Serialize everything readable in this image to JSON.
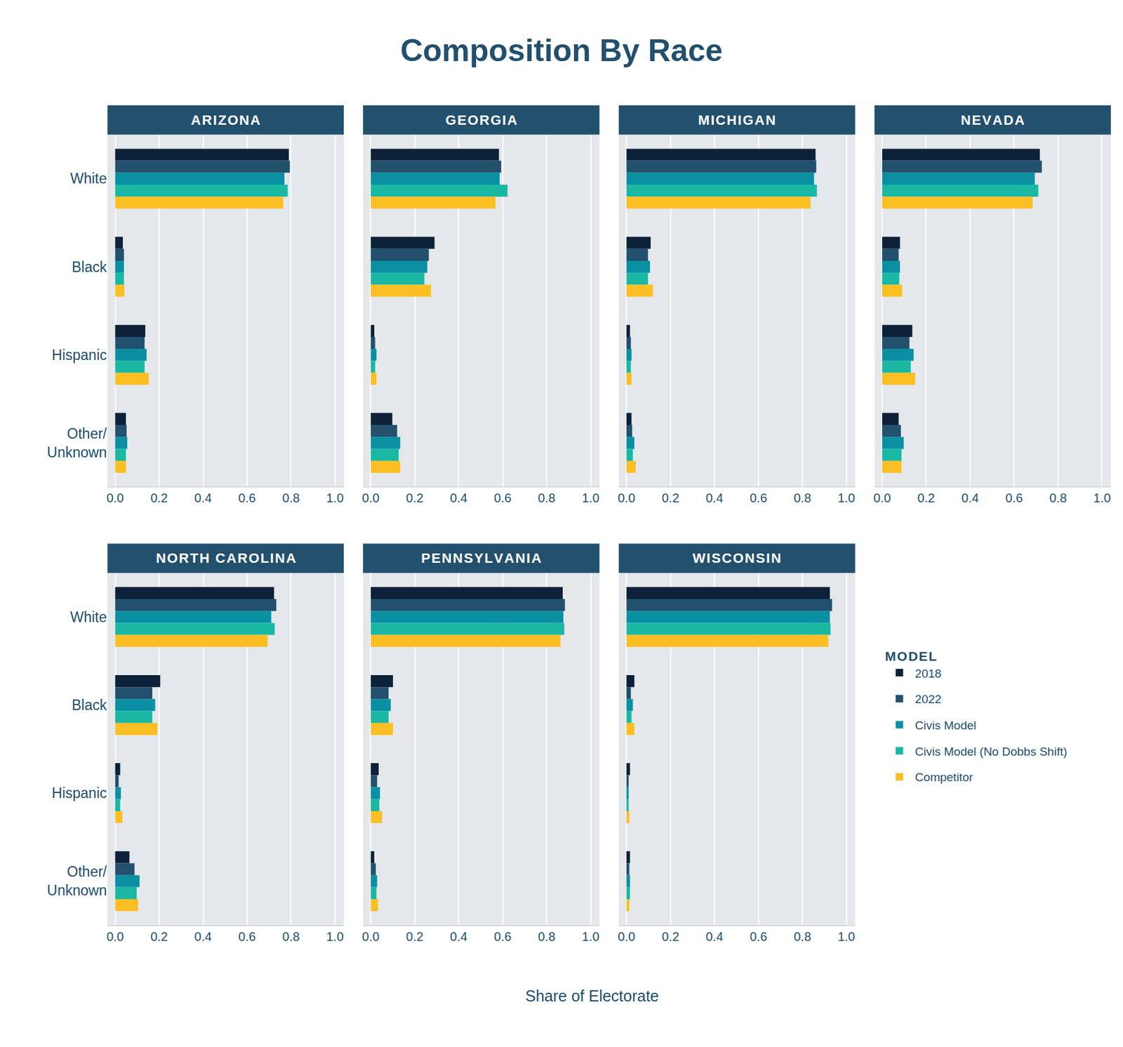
{
  "title": "Composition By Race",
  "xlabel": "Share of Electorate",
  "legend_title": "MODEL",
  "legend": "lower right",
  "chart_data": [
    {
      "type": "bar",
      "title": "ARIZONA",
      "orientation": "horizontal",
      "grid": true,
      "categories": [
        "White",
        "Black",
        "Hispanic",
        "Other/\nUnknown"
      ],
      "xlim": [
        -0.035,
        1.04
      ],
      "xticks": [
        {
          "value": 0,
          "label": "0.0"
        },
        0.2,
        0.4,
        0.6,
        0.8,
        {
          "value": 1,
          "label": "1.0"
        }
      ],
      "series": [
        {
          "name": "2018",
          "color": "#0d2238",
          "values": [
            0.79,
            0.035,
            0.137,
            0.049
          ]
        },
        {
          "name": "2022",
          "color": "#22506d",
          "values": [
            0.795,
            0.04,
            0.134,
            0.052
          ]
        },
        {
          "name": "Civis Model",
          "color": "#0a8fa3",
          "values": [
            0.77,
            0.04,
            0.143,
            0.055
          ]
        },
        {
          "name": "Civis Model (No Dobbs Shift)",
          "color": "#1ab8a3",
          "values": [
            0.785,
            0.04,
            0.134,
            0.049
          ]
        },
        {
          "name": "Competitor",
          "color": "#fbbf24",
          "values": [
            0.765,
            0.042,
            0.153,
            0.049
          ]
        }
      ]
    },
    {
      "type": "bar",
      "title": "GEORGIA",
      "orientation": "horizontal",
      "grid": true,
      "categories": [
        "White",
        "Black",
        "Hispanic",
        "Other/\nUnknown"
      ],
      "xlim": [
        -0.035,
        1.04
      ],
      "xticks": [
        {
          "value": 0,
          "label": "0.0"
        },
        0.2,
        0.4,
        0.6,
        0.8,
        {
          "value": 1,
          "label": "1.0"
        }
      ],
      "series": [
        {
          "name": "2018",
          "color": "#0d2238",
          "values": [
            0.583,
            0.29,
            0.016,
            0.098
          ]
        },
        {
          "name": "2022",
          "color": "#22506d",
          "values": [
            0.593,
            0.264,
            0.02,
            0.12
          ]
        },
        {
          "name": "Civis Model",
          "color": "#0a8fa3",
          "values": [
            0.586,
            0.257,
            0.026,
            0.134
          ]
        },
        {
          "name": "Civis Model (No Dobbs Shift)",
          "color": "#1ab8a3",
          "values": [
            0.622,
            0.244,
            0.02,
            0.127
          ]
        },
        {
          "name": "Competitor",
          "color": "#fbbf24",
          "values": [
            0.567,
            0.274,
            0.026,
            0.134
          ]
        }
      ]
    },
    {
      "type": "bar",
      "title": "MICHIGAN",
      "orientation": "horizontal",
      "grid": true,
      "categories": [
        "White",
        "Black",
        "Hispanic",
        "Other/\nUnknown"
      ],
      "xlim": [
        -0.035,
        1.04
      ],
      "xticks": [
        {
          "value": 0,
          "label": "0.0"
        },
        0.2,
        0.4,
        0.6,
        0.8,
        {
          "value": 1,
          "label": "1.0"
        }
      ],
      "series": [
        {
          "name": "2018",
          "color": "#0d2238",
          "values": [
            0.86,
            0.11,
            0.016,
            0.023
          ]
        },
        {
          "name": "2022",
          "color": "#22506d",
          "values": [
            0.863,
            0.098,
            0.02,
            0.026
          ]
        },
        {
          "name": "Civis Model",
          "color": "#0a8fa3",
          "values": [
            0.853,
            0.107,
            0.023,
            0.036
          ]
        },
        {
          "name": "Civis Model (No Dobbs Shift)",
          "color": "#1ab8a3",
          "values": [
            0.866,
            0.098,
            0.02,
            0.029
          ]
        },
        {
          "name": "Competitor",
          "color": "#fbbf24",
          "values": [
            0.837,
            0.12,
            0.023,
            0.042
          ]
        }
      ]
    },
    {
      "type": "bar",
      "title": "NEVADA",
      "orientation": "horizontal",
      "grid": true,
      "categories": [
        "White",
        "Black",
        "Hispanic",
        "Other/\nUnknown"
      ],
      "xlim": [
        -0.035,
        1.04
      ],
      "xticks": [
        {
          "value": 0,
          "label": "0.0"
        },
        0.2,
        0.4,
        0.6,
        0.8,
        {
          "value": 1,
          "label": "1.0"
        }
      ],
      "series": [
        {
          "name": "2018",
          "color": "#0d2238",
          "values": [
            0.717,
            0.081,
            0.137,
            0.075
          ]
        },
        {
          "name": "2022",
          "color": "#22506d",
          "values": [
            0.726,
            0.075,
            0.124,
            0.085
          ]
        },
        {
          "name": "Civis Model",
          "color": "#0a8fa3",
          "values": [
            0.694,
            0.081,
            0.143,
            0.098
          ]
        },
        {
          "name": "Civis Model (No Dobbs Shift)",
          "color": "#1ab8a3",
          "values": [
            0.71,
            0.078,
            0.13,
            0.088
          ]
        },
        {
          "name": "Competitor",
          "color": "#fbbf24",
          "values": [
            0.684,
            0.091,
            0.15,
            0.088
          ]
        }
      ]
    },
    {
      "type": "bar",
      "title": "NORTH CAROLINA",
      "orientation": "horizontal",
      "grid": true,
      "categories": [
        "White",
        "Black",
        "Hispanic",
        "Other/\nUnknown"
      ],
      "xlim": [
        -0.035,
        1.04
      ],
      "xticks": [
        {
          "value": 0,
          "label": "0.0"
        },
        0.2,
        0.4,
        0.6,
        0.8,
        {
          "value": 1,
          "label": "1.0"
        }
      ],
      "series": [
        {
          "name": "2018",
          "color": "#0d2238",
          "values": [
            0.723,
            0.205,
            0.023,
            0.065
          ]
        },
        {
          "name": "2022",
          "color": "#22506d",
          "values": [
            0.733,
            0.169,
            0.016,
            0.088
          ]
        },
        {
          "name": "Civis Model",
          "color": "#0a8fa3",
          "values": [
            0.71,
            0.182,
            0.026,
            0.111
          ]
        },
        {
          "name": "Civis Model (No Dobbs Shift)",
          "color": "#1ab8a3",
          "values": [
            0.726,
            0.169,
            0.023,
            0.098
          ]
        },
        {
          "name": "Competitor",
          "color": "#fbbf24",
          "values": [
            0.694,
            0.192,
            0.033,
            0.104
          ]
        }
      ]
    },
    {
      "type": "bar",
      "title": "PENNSYLVANIA",
      "orientation": "horizontal",
      "grid": true,
      "categories": [
        "White",
        "Black",
        "Hispanic",
        "Other/\nUnknown"
      ],
      "xlim": [
        -0.035,
        1.04
      ],
      "xticks": [
        {
          "value": 0,
          "label": "0.0"
        },
        0.2,
        0.4,
        0.6,
        0.8,
        {
          "value": 1,
          "label": "1.0"
        }
      ],
      "series": [
        {
          "name": "2018",
          "color": "#0d2238",
          "values": [
            0.873,
            0.101,
            0.036,
            0.016
          ]
        },
        {
          "name": "2022",
          "color": "#22506d",
          "values": [
            0.883,
            0.081,
            0.029,
            0.023
          ]
        },
        {
          "name": "Civis Model",
          "color": "#0a8fa3",
          "values": [
            0.876,
            0.091,
            0.042,
            0.029
          ]
        },
        {
          "name": "Civis Model (No Dobbs Shift)",
          "color": "#1ab8a3",
          "values": [
            0.88,
            0.081,
            0.039,
            0.026
          ]
        },
        {
          "name": "Competitor",
          "color": "#fbbf24",
          "values": [
            0.863,
            0.101,
            0.052,
            0.033
          ]
        }
      ]
    },
    {
      "type": "bar",
      "title": "WISCONSIN",
      "orientation": "horizontal",
      "grid": true,
      "categories": [
        "White",
        "Black",
        "Hispanic",
        "Other/\nUnknown"
      ],
      "xlim": [
        -0.035,
        1.04
      ],
      "xticks": [
        {
          "value": 0,
          "label": "0.0"
        },
        0.2,
        0.4,
        0.6,
        0.8,
        {
          "value": 1,
          "label": "1.0"
        }
      ],
      "series": [
        {
          "name": "2018",
          "color": "#0d2238",
          "values": [
            0.925,
            0.036,
            0.016,
            0.016
          ]
        },
        {
          "name": "2022",
          "color": "#22506d",
          "values": [
            0.935,
            0.02,
            0.01,
            0.013
          ]
        },
        {
          "name": "Civis Model",
          "color": "#0a8fa3",
          "values": [
            0.925,
            0.029,
            0.01,
            0.016
          ]
        },
        {
          "name": "Civis Model (No Dobbs Shift)",
          "color": "#1ab8a3",
          "values": [
            0.928,
            0.023,
            0.01,
            0.016
          ]
        },
        {
          "name": "Competitor",
          "color": "#fbbf24",
          "values": [
            0.918,
            0.036,
            0.013,
            0.013
          ]
        }
      ]
    }
  ]
}
